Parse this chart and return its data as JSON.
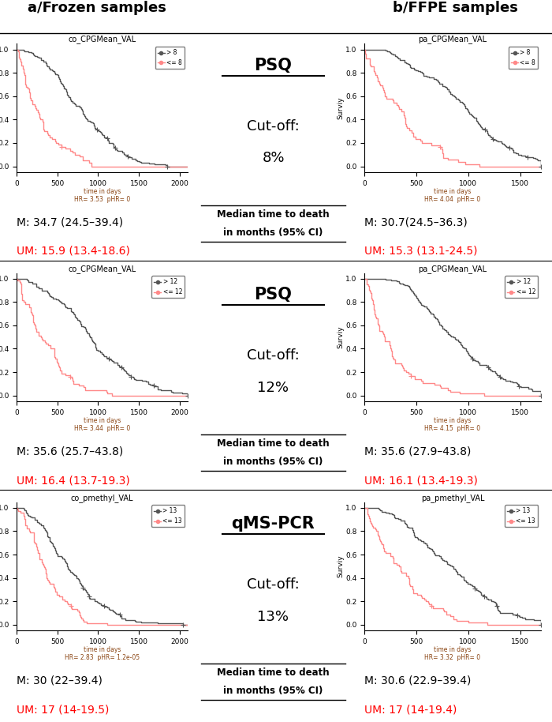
{
  "title_left": "a/Frozen samples",
  "title_right": "b/FFPE samples",
  "rows": [
    {
      "plot_title_left": "co_CPGMean_VAL",
      "plot_title_right": "pa_CPGMean_VAL",
      "method": "PSQ",
      "cutoff_line1": "Cut-off:",
      "cutoff_line2": "8%",
      "legend_threshold": "8",
      "hr_left": "HR= 3.53  pHR= 0",
      "hr_right": "HR= 4.04  pHR= 0",
      "m_left": "M: 34.7 (24.5–39.4)",
      "um_left": "UM: 15.9 (13.4-18.6)",
      "m_right": "M: 30.7(24.5–36.3)",
      "um_right": "UM: 15.3 (13.1-24.5)",
      "xlim_left": 2100,
      "xlim_right": 1700,
      "xticks_left": [
        0,
        500,
        1000,
        1500,
        2000
      ],
      "xticks_right": [
        0,
        500,
        1000,
        1500
      ]
    },
    {
      "plot_title_left": "co_CPGMean_VAL",
      "plot_title_right": "pa_CPGMean_VAL",
      "method": "PSQ",
      "cutoff_line1": "Cut-off:",
      "cutoff_line2": "12%",
      "legend_threshold": "12",
      "hr_left": "HR= 3.44  pHR= 0",
      "hr_right": "HR= 4.15  pHR= 0",
      "m_left": "M: 35.6 (25.7–43.8)",
      "um_left": "UM: 16.4 (13.7-19.3)",
      "m_right": "M: 35.6 (27.9–43.8)",
      "um_right": "UM: 16.1 (13.4-19.3)",
      "xlim_left": 2100,
      "xlim_right": 1700,
      "xticks_left": [
        0,
        500,
        1000,
        1500,
        2000
      ],
      "xticks_right": [
        0,
        500,
        1000,
        1500
      ]
    },
    {
      "plot_title_left": "co_pmethyl_VAL",
      "plot_title_right": "pa_pmethyl_VAL",
      "method": "qMS-PCR",
      "cutoff_line1": "Cut-off:",
      "cutoff_line2": "13%",
      "legend_threshold": "13",
      "hr_left": "HR= 2.83  pHR= 1.2e-05",
      "hr_right": "HR= 3.32  pHR= 0",
      "m_left": "M: 30 (22–39.4)",
      "um_left": "UM: 17 (14-19.5)",
      "m_right": "M: 30.6 (22.9–39.4)",
      "um_right": "UM: 17 (14-19.4)",
      "xlim_left": 2100,
      "xlim_right": 1700,
      "xticks_left": [
        0,
        500,
        1000,
        1500,
        2000
      ],
      "xticks_right": [
        0,
        500,
        1000,
        1500
      ]
    }
  ],
  "color_m": "#000000",
  "color_um": "#FF0000",
  "color_gray": "#555555",
  "color_pink": "#FF8888"
}
